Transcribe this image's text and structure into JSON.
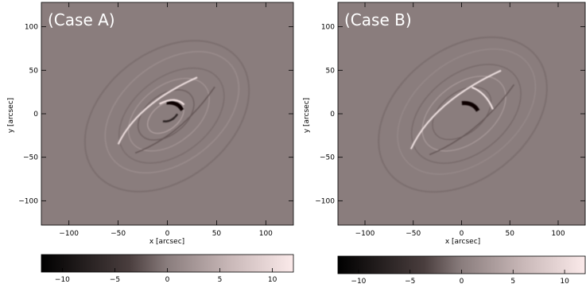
{
  "chart_data": [
    {
      "type": "heatmap",
      "title": "(Case A)",
      "xlabel": "x [arcsec]",
      "ylabel": "y [arcsec]",
      "xlim": [
        -128,
        128
      ],
      "ylim": [
        -128,
        128
      ],
      "xticks": [
        -100,
        -50,
        0,
        50,
        100
      ],
      "yticks": [
        -100,
        -50,
        0,
        50,
        100
      ],
      "colorbar": {
        "range": [
          -12,
          12
        ],
        "ticks": [
          -10,
          -5,
          0,
          5,
          10
        ]
      },
      "background_value": 0
    },
    {
      "type": "heatmap",
      "title": "(Case B)",
      "xlabel": "x [arcsec]",
      "ylabel": "y [arcsec]",
      "xlim": [
        -128,
        128
      ],
      "ylim": [
        -128,
        128
      ],
      "xticks": [
        -100,
        -50,
        0,
        50,
        100
      ],
      "yticks": [
        -100,
        -50,
        0,
        50,
        100
      ],
      "colorbar": {
        "range": [
          -12,
          12
        ],
        "ticks": [
          -10,
          -5,
          0,
          5,
          10
        ]
      },
      "background_value": 0
    }
  ],
  "colors": {
    "background": "#8a7d7d",
    "dark": "#000000",
    "light": "#fbeaea",
    "axis": "#000000",
    "title_text": "#ffffff"
  }
}
